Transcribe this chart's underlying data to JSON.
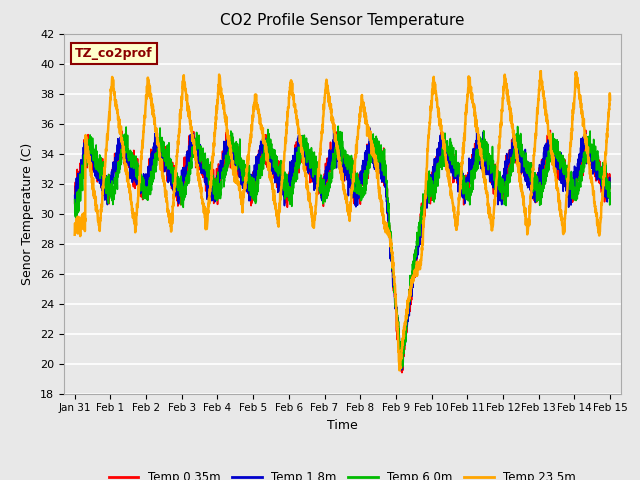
{
  "title": "CO2 Profile Sensor Temperature",
  "xlabel": "Time",
  "ylabel": "Senor Temperature (C)",
  "annotation_text": "TZ_co2prof",
  "annotation_facecolor": "#ffffcc",
  "annotation_edgecolor": "#8b0000",
  "annotation_textcolor": "#8b0000",
  "ylim": [
    18,
    42
  ],
  "background_color": "#e8e8e8",
  "grid_color": "white",
  "series_colors": [
    "#ff0000",
    "#0000cc",
    "#00bb00",
    "#ffa500"
  ],
  "series_labels": [
    "Temp 0.35m",
    "Temp 1.8m",
    "Temp 6.0m",
    "Temp 23.5m"
  ],
  "x_tick_labels": [
    "Jan 31",
    "Feb 1",
    "Feb 2",
    "Feb 3",
    "Feb 4",
    "Feb 5",
    "Feb 6",
    "Feb 7",
    "Feb 8",
    "Feb 9",
    "Feb 10",
    "Feb 11",
    "Feb 12",
    "Feb 13",
    "Feb 14",
    "Feb 15"
  ],
  "x_tick_positions": [
    0,
    1,
    2,
    3,
    4,
    5,
    6,
    7,
    8,
    9,
    10,
    11,
    12,
    13,
    14,
    15
  ],
  "ytick_positions": [
    18,
    20,
    22,
    24,
    26,
    28,
    30,
    32,
    34,
    36,
    38,
    40,
    42
  ]
}
